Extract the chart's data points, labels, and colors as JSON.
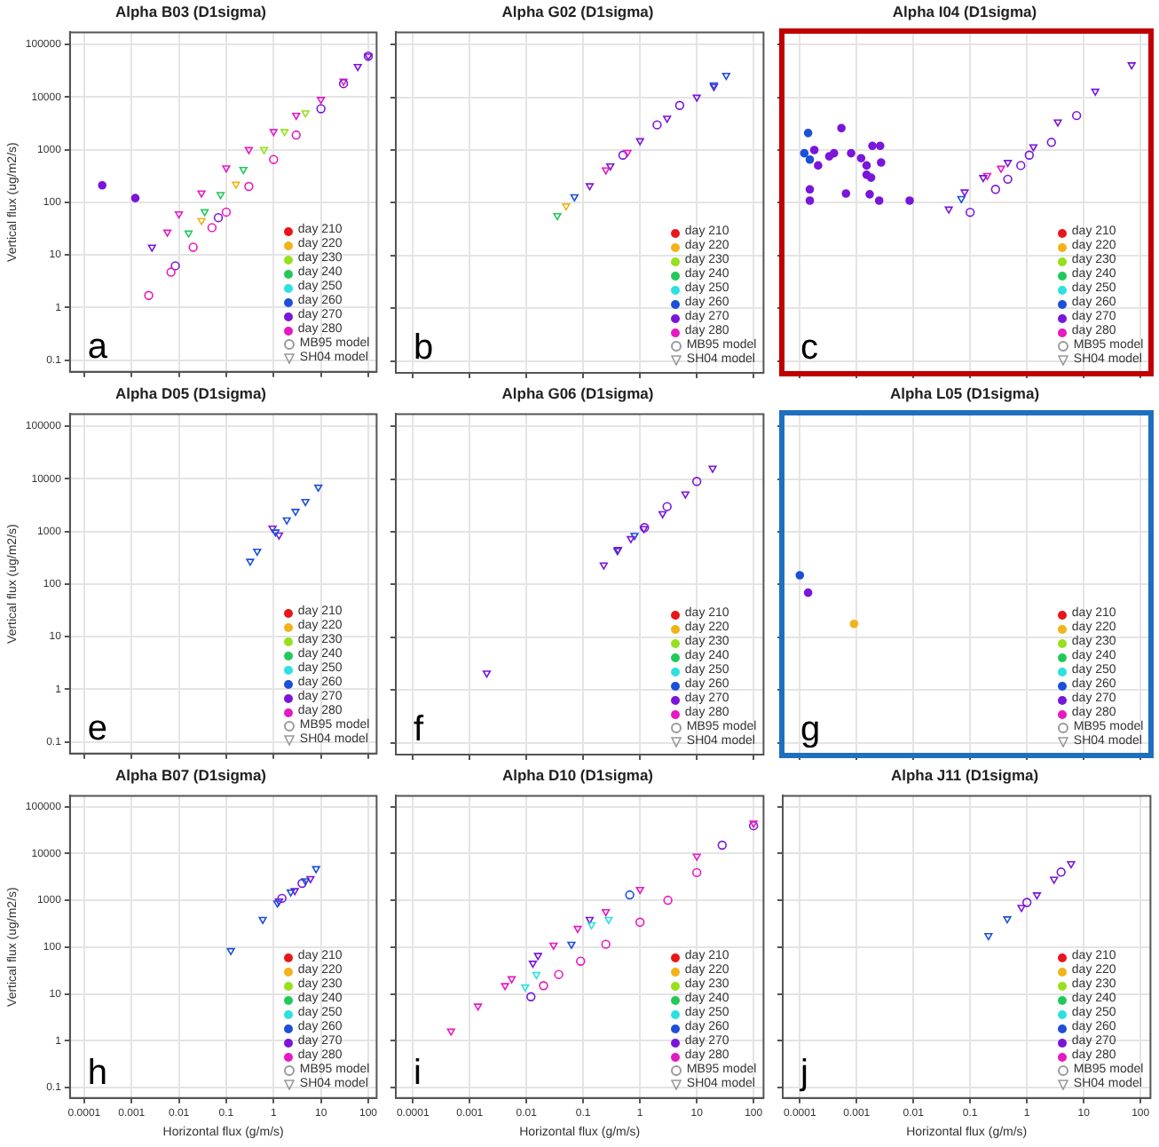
{
  "chart_data": [
    {
      "type": "scatter",
      "title": "Alpha B03 (D1sigma)",
      "ylabel": "Vertical flux (ug/m2/s)",
      "log": "xy",
      "grid": true,
      "legend": "bottom right",
      "tick_labels": "y",
      "xlim": [
        5e-05,
        150
      ],
      "ylim": [
        0.06,
        170000
      ],
      "xticks": [
        0.0001,
        0.001,
        0.01,
        0.1,
        1,
        10,
        100
      ],
      "yticks": [
        0.1,
        1,
        10,
        100,
        1000,
        10000,
        100000
      ],
      "annotations": [
        "a"
      ],
      "series": [
        {
          "name": "day 210",
          "color": "#e8161b"
        },
        {
          "name": "day 220",
          "color": "#f2b21a"
        },
        {
          "name": "day 230",
          "color": "#96e01e"
        },
        {
          "name": "day 240",
          "color": "#22c95a"
        },
        {
          "name": "day 250",
          "color": "#2fe0e0"
        },
        {
          "name": "day 260",
          "color": "#1d4fd8"
        },
        {
          "name": "day 270",
          "color": "#7a16d9",
          "x": [
            0.00024,
            0.0012
          ],
          "values": [
            210,
            120
          ]
        },
        {
          "name": "day 280",
          "color": "#e619c3"
        },
        {
          "color": "#e619c3",
          "marker": "circle",
          "x": [
            0.0023,
            0.0068,
            0.02,
            0.05,
            0.1,
            0.3,
            1,
            3
          ],
          "values": [
            1.7,
            4.7,
            14,
            33,
            65,
            200,
            650,
            1900
          ]
        },
        {
          "color": "#7a16d9",
          "marker": "circle",
          "x": [
            0.0084,
            0.068,
            10,
            30,
            100
          ],
          "values": [
            6.2,
            51,
            6000,
            18000,
            60000
          ]
        },
        {
          "color": "#e619c3",
          "marker": "triangle",
          "x": [
            0.0057,
            0.01,
            0.03,
            0.1,
            0.3,
            1,
            3,
            10,
            30
          ],
          "values": [
            27,
            60,
            150,
            450,
            1000,
            2200,
            4500,
            9000,
            20000
          ]
        },
        {
          "color": "#7a16d9",
          "marker": "triangle",
          "x": [
            0.0027,
            60,
            100
          ],
          "values": [
            14,
            38000,
            60000
          ]
        },
        {
          "color": "#22c95a",
          "marker": "triangle",
          "x": [
            0.016,
            0.035,
            0.076,
            0.23
          ],
          "values": [
            26,
            66,
            140,
            420
          ]
        },
        {
          "color": "#96e01e",
          "marker": "triangle",
          "x": [
            0.63,
            1.7,
            4.7
          ],
          "values": [
            1000,
            2200,
            5000
          ]
        },
        {
          "color": "#f2b21a",
          "marker": "triangle",
          "x": [
            0.03,
            0.16
          ],
          "values": [
            45,
            220
          ]
        },
        {
          "name": "MB95 model",
          "color": "#999999",
          "marker": "circle"
        },
        {
          "name": "SH04 model",
          "color": "#999999",
          "marker": "triangle"
        }
      ]
    },
    {
      "type": "scatter",
      "title": "Alpha G02 (D1sigma)",
      "log": "xy",
      "grid": true,
      "legend": "bottom right",
      "tick_labels": false,
      "xlim": [
        5e-05,
        150
      ],
      "ylim": [
        0.06,
        170000
      ],
      "xticks": [
        0.0001,
        0.001,
        0.01,
        0.1,
        1,
        10,
        100
      ],
      "yticks": [
        0.1,
        1,
        10,
        100,
        1000,
        10000,
        100000
      ],
      "annotations": [
        "b"
      ],
      "series": [
        {
          "name": "day 210",
          "color": "#e8161b"
        },
        {
          "name": "day 220",
          "color": "#f2b21a"
        },
        {
          "name": "day 230",
          "color": "#96e01e"
        },
        {
          "name": "day 240",
          "color": "#22c95a"
        },
        {
          "name": "day 250",
          "color": "#2fe0e0"
        },
        {
          "name": "day 260",
          "color": "#1d4fd8"
        },
        {
          "name": "day 270",
          "color": "#7a16d9"
        },
        {
          "name": "day 280",
          "color": "#e619c3"
        },
        {
          "color": "#e619c3",
          "marker": "triangle",
          "x": [
            0.25,
            0.6
          ],
          "values": [
            420,
            900
          ]
        },
        {
          "color": "#22c95a",
          "marker": "triangle",
          "x": [
            0.035
          ],
          "values": [
            57
          ]
        },
        {
          "color": "#f2b21a",
          "marker": "triangle",
          "x": [
            0.05
          ],
          "values": [
            87
          ]
        },
        {
          "color": "#1d4fd8",
          "marker": "triangle",
          "x": [
            0.07,
            20,
            33
          ],
          "values": [
            130,
            17000,
            26000
          ]
        },
        {
          "color": "#7a16d9",
          "marker": "triangle",
          "x": [
            0.13,
            0.3,
            1,
            3,
            10,
            20
          ],
          "values": [
            210,
            500,
            1500,
            4000,
            10000,
            16000
          ]
        },
        {
          "color": "#7a16d9",
          "marker": "circle",
          "x": [
            0.5,
            2,
            5
          ],
          "values": [
            800,
            3000,
            7000
          ]
        },
        {
          "name": "MB95 model",
          "color": "#999999",
          "marker": "circle"
        },
        {
          "name": "SH04 model",
          "color": "#999999",
          "marker": "triangle"
        }
      ]
    },
    {
      "type": "scatter",
      "title": "Alpha I04 (D1sigma)",
      "log": "xy",
      "grid": true,
      "legend": "bottom right",
      "tick_labels": false,
      "xlim": [
        5e-05,
        150
      ],
      "ylim": [
        0.06,
        170000
      ],
      "xticks": [
        0.0001,
        0.001,
        0.01,
        0.1,
        1,
        10,
        100
      ],
      "yticks": [
        0.1,
        1,
        10,
        100,
        1000,
        10000,
        100000
      ],
      "annotations": [
        "c"
      ],
      "series": [
        {
          "name": "day 210",
          "color": "#e8161b"
        },
        {
          "name": "day 220",
          "color": "#f2b21a"
        },
        {
          "name": "day 230",
          "color": "#96e01e"
        },
        {
          "name": "day 240",
          "color": "#22c95a"
        },
        {
          "name": "day 250",
          "color": "#2fe0e0"
        },
        {
          "name": "day 260",
          "color": "#1d4fd8",
          "x": [
            0.00014,
            0.00012,
            0.00015
          ],
          "values": [
            2100,
            870,
            660
          ]
        },
        {
          "name": "day 270",
          "color": "#7a16d9",
          "x": [
            0.00018,
            0.00021,
            0.00033,
            0.0004,
            0.00054,
            0.0008,
            0.0012,
            0.0015,
            0.0015,
            0.0018,
            0.0019,
            0.0026,
            0.0027,
            0.00015,
            0.00015,
            0.00065,
            0.0017,
            0.0025,
            0.0086
          ],
          "values": [
            1000,
            510,
            760,
            870,
            2600,
            870,
            700,
            510,
            340,
            300,
            1200,
            1200,
            580,
            180,
            110,
            150,
            145,
            110,
            110
          ]
        },
        {
          "name": "day 280",
          "color": "#e619c3"
        },
        {
          "color": "#7a16d9",
          "marker": "triangle",
          "x": [
            0.042,
            0.08,
            0.17,
            0.46,
            1.3,
            3.5,
            16,
            70
          ],
          "values": [
            76,
            160,
            300,
            580,
            1150,
            3400,
            13000,
            41000
          ]
        },
        {
          "color": "#1d4fd8",
          "marker": "triangle",
          "x": [
            0.07
          ],
          "values": [
            120
          ]
        },
        {
          "color": "#e619c3",
          "marker": "triangle",
          "x": [
            0.2,
            0.35
          ],
          "values": [
            330,
            450
          ]
        },
        {
          "color": "#7a16d9",
          "marker": "circle",
          "x": [
            0.1,
            0.28,
            0.46,
            0.78,
            1.1,
            2.7,
            7.5
          ],
          "values": [
            66,
            180,
            280,
            510,
            800,
            1400,
            4500
          ]
        },
        {
          "name": "MB95 model",
          "color": "#999999",
          "marker": "circle"
        },
        {
          "name": "SH04 model",
          "color": "#999999",
          "marker": "triangle"
        }
      ]
    },
    {
      "type": "scatter",
      "title": "Alpha D05 (D1sigma)",
      "ylabel": "Vertical flux (ug/m2/s)",
      "log": "xy",
      "grid": true,
      "legend": "bottom right",
      "tick_labels": "y",
      "xlim": [
        5e-05,
        150
      ],
      "ylim": [
        0.06,
        170000
      ],
      "xticks": [
        0.0001,
        0.001,
        0.01,
        0.1,
        1,
        10,
        100
      ],
      "yticks": [
        0.1,
        1,
        10,
        100,
        1000,
        10000,
        100000
      ],
      "annotations": [
        "e"
      ],
      "series": [
        {
          "name": "day 210",
          "color": "#e8161b"
        },
        {
          "name": "day 220",
          "color": "#f2b21a"
        },
        {
          "name": "day 230",
          "color": "#96e01e"
        },
        {
          "name": "day 240",
          "color": "#22c95a"
        },
        {
          "name": "day 250",
          "color": "#2fe0e0"
        },
        {
          "name": "day 260",
          "color": "#1d4fd8"
        },
        {
          "name": "day 270",
          "color": "#7a16d9"
        },
        {
          "name": "day 280",
          "color": "#e619c3"
        },
        {
          "color": "#1d4fd8",
          "marker": "triangle",
          "x": [
            0.32,
            0.45,
            1.1,
            1.9,
            2.9,
            4.7,
            8.8
          ],
          "values": [
            270,
            420,
            970,
            1650,
            2400,
            3700,
            6900
          ]
        },
        {
          "color": "#7a16d9",
          "marker": "triangle",
          "x": [
            0.95,
            1.3
          ],
          "values": [
            1150,
            850
          ]
        },
        {
          "name": "MB95 model",
          "color": "#999999",
          "marker": "circle"
        },
        {
          "name": "SH04 model",
          "color": "#999999",
          "marker": "triangle"
        }
      ]
    },
    {
      "type": "scatter",
      "title": "Alpha G06 (D1sigma)",
      "log": "xy",
      "grid": true,
      "legend": "bottom right",
      "tick_labels": false,
      "xlim": [
        5e-05,
        150
      ],
      "ylim": [
        0.06,
        170000
      ],
      "xticks": [
        0.0001,
        0.001,
        0.01,
        0.1,
        1,
        10,
        100
      ],
      "yticks": [
        0.1,
        1,
        10,
        100,
        1000,
        10000,
        100000
      ],
      "annotations": [
        "f"
      ],
      "series": [
        {
          "name": "day 210",
          "color": "#e8161b"
        },
        {
          "name": "day 220",
          "color": "#f2b21a"
        },
        {
          "name": "day 230",
          "color": "#96e01e"
        },
        {
          "name": "day 240",
          "color": "#22c95a"
        },
        {
          "name": "day 250",
          "color": "#2fe0e0"
        },
        {
          "name": "day 260",
          "color": "#1d4fd8"
        },
        {
          "name": "day 270",
          "color": "#7a16d9"
        },
        {
          "name": "day 280",
          "color": "#e619c3"
        },
        {
          "color": "#7a16d9",
          "marker": "triangle",
          "x": [
            0.002,
            0.23,
            0.41,
            0.69,
            1.17,
            2.5,
            6.3,
            19
          ],
          "values": [
            2.1,
            235,
            460,
            740,
            1150,
            2200,
            5200,
            16000
          ]
        },
        {
          "color": "#1d4fd8",
          "marker": "triangle",
          "x": [
            0.4,
            0.8
          ],
          "values": [
            440,
            850
          ]
        },
        {
          "color": "#7a16d9",
          "marker": "circle",
          "x": [
            1.2,
            3,
            10
          ],
          "values": [
            1200,
            3000,
            9000
          ]
        },
        {
          "name": "MB95 model",
          "color": "#999999",
          "marker": "circle"
        },
        {
          "name": "SH04 model",
          "color": "#999999",
          "marker": "triangle"
        }
      ]
    },
    {
      "type": "scatter",
      "title": "Alpha L05 (D1sigma)",
      "log": "xy",
      "grid": true,
      "legend": "bottom right",
      "tick_labels": false,
      "xlim": [
        5e-05,
        150
      ],
      "ylim": [
        0.06,
        170000
      ],
      "xticks": [
        0.0001,
        0.001,
        0.01,
        0.1,
        1,
        10,
        100
      ],
      "yticks": [
        0.1,
        1,
        10,
        100,
        1000,
        10000,
        100000
      ],
      "annotations": [
        "g"
      ],
      "series": [
        {
          "name": "day 210",
          "color": "#e8161b"
        },
        {
          "name": "day 220",
          "color": "#f2b21a",
          "x": [
            0.0009
          ],
          "values": [
            18
          ]
        },
        {
          "name": "day 230",
          "color": "#96e01e"
        },
        {
          "name": "day 240",
          "color": "#22c95a"
        },
        {
          "name": "day 250",
          "color": "#2fe0e0"
        },
        {
          "name": "day 260",
          "color": "#1d4fd8",
          "x": [
            0.0001
          ],
          "values": [
            150
          ]
        },
        {
          "name": "day 270",
          "color": "#7a16d9",
          "x": [
            0.00014
          ],
          "values": [
            70
          ]
        },
        {
          "name": "day 280",
          "color": "#e619c3"
        },
        {
          "name": "MB95 model",
          "color": "#999999",
          "marker": "circle"
        },
        {
          "name": "SH04 model",
          "color": "#999999",
          "marker": "triangle"
        }
      ]
    },
    {
      "type": "scatter",
      "title": "Alpha B07 (D1sigma)",
      "xlabel": "Horizontal flux (g/m/s)",
      "ylabel": "Vertical flux (ug/m2/s)",
      "log": "xy",
      "grid": true,
      "legend": "bottom right",
      "xlim": [
        5e-05,
        150
      ],
      "ylim": [
        0.06,
        170000
      ],
      "xticks": [
        0.0001,
        0.001,
        0.01,
        0.1,
        1,
        10,
        100
      ],
      "yticks": [
        0.1,
        1,
        10,
        100,
        1000,
        10000,
        100000
      ],
      "annotations": [
        "h"
      ],
      "series": [
        {
          "name": "day 210",
          "color": "#e8161b"
        },
        {
          "name": "day 220",
          "color": "#f2b21a"
        },
        {
          "name": "day 230",
          "color": "#96e01e"
        },
        {
          "name": "day 240",
          "color": "#22c95a"
        },
        {
          "name": "day 250",
          "color": "#2fe0e0"
        },
        {
          "name": "day 260",
          "color": "#1d4fd8"
        },
        {
          "name": "day 270",
          "color": "#7a16d9"
        },
        {
          "name": "day 280",
          "color": "#e619c3"
        },
        {
          "color": "#1d4fd8",
          "marker": "triangle",
          "x": [
            0.125,
            0.59,
            1.2,
            2.3,
            4.7,
            7.9
          ],
          "values": [
            84,
            390,
            870,
            1500,
            2600,
            4700
          ]
        },
        {
          "color": "#7a16d9",
          "marker": "triangle",
          "x": [
            1.3,
            2.8,
            6
          ],
          "values": [
            960,
            1600,
            2900
          ]
        },
        {
          "color": "#7a16d9",
          "marker": "circle",
          "x": [
            1.5,
            4
          ],
          "values": [
            1100,
            2300
          ]
        },
        {
          "name": "MB95 model",
          "color": "#999999",
          "marker": "circle"
        },
        {
          "name": "SH04 model",
          "color": "#999999",
          "marker": "triangle"
        }
      ]
    },
    {
      "type": "scatter",
      "title": "Alpha D10 (D1sigma)",
      "xlabel": "Horizontal flux (g/m/s)",
      "log": "xy",
      "grid": true,
      "legend": "bottom right",
      "tick_labels": "x",
      "xlim": [
        5e-05,
        150
      ],
      "ylim": [
        0.06,
        170000
      ],
      "xticks": [
        0.0001,
        0.001,
        0.01,
        0.1,
        1,
        10,
        100
      ],
      "yticks": [
        0.1,
        1,
        10,
        100,
        1000,
        10000,
        100000
      ],
      "annotations": [
        "i"
      ],
      "series": [
        {
          "name": "day 210",
          "color": "#e8161b"
        },
        {
          "name": "day 220",
          "color": "#f2b21a"
        },
        {
          "name": "day 230",
          "color": "#96e01e"
        },
        {
          "name": "day 240",
          "color": "#22c95a"
        },
        {
          "name": "day 250",
          "color": "#2fe0e0"
        },
        {
          "name": "day 260",
          "color": "#1d4fd8"
        },
        {
          "name": "day 270",
          "color": "#7a16d9"
        },
        {
          "name": "day 280",
          "color": "#e619c3"
        },
        {
          "color": "#e619c3",
          "marker": "triangle",
          "x": [
            0.00047,
            0.0014,
            0.0042,
            0.0055,
            0.03,
            0.08,
            0.25,
            1,
            10,
            100
          ],
          "values": [
            1.6,
            5.5,
            15,
            21,
            110,
            250,
            570,
            1700,
            8700,
            44000
          ]
        },
        {
          "color": "#2fe0e0",
          "marker": "triangle",
          "x": [
            0.0095,
            0.015,
            0.14,
            0.28
          ],
          "values": [
            14,
            26,
            300,
            390
          ]
        },
        {
          "color": "#1d4fd8",
          "marker": "triangle",
          "x": [
            0.062
          ],
          "values": [
            115
          ]
        },
        {
          "color": "#7a16d9",
          "marker": "triangle",
          "x": [
            0.013,
            0.016,
            0.13
          ],
          "values": [
            45,
            66,
            390
          ]
        },
        {
          "color": "#e619c3",
          "marker": "circle",
          "x": [
            0.02,
            0.037,
            0.09,
            0.25,
            1,
            3.1,
            10
          ],
          "values": [
            15,
            26,
            50,
            115,
            340,
            1000,
            3900
          ]
        },
        {
          "color": "#7a16d9",
          "marker": "circle",
          "x": [
            0.012,
            28,
            100
          ],
          "values": [
            8.7,
            15000,
            39000
          ]
        },
        {
          "color": "#1d4fd8",
          "marker": "circle",
          "x": [
            0.66
          ],
          "values": [
            1300
          ]
        },
        {
          "name": "MB95 model",
          "color": "#999999",
          "marker": "circle"
        },
        {
          "name": "SH04 model",
          "color": "#999999",
          "marker": "triangle"
        }
      ]
    },
    {
      "type": "scatter",
      "title": "Alpha J11 (D1sigma)",
      "xlabel": "Horizontal flux (g/m/s)",
      "log": "xy",
      "grid": true,
      "legend": "bottom right",
      "tick_labels": "x",
      "xlim": [
        5e-05,
        150
      ],
      "ylim": [
        0.06,
        170000
      ],
      "xticks": [
        0.0001,
        0.001,
        0.01,
        0.1,
        1,
        10,
        100
      ],
      "yticks": [
        0.1,
        1,
        10,
        100,
        1000,
        10000,
        100000
      ],
      "annotations": [
        "j"
      ],
      "series": [
        {
          "name": "day 210",
          "color": "#e8161b"
        },
        {
          "name": "day 220",
          "color": "#f2b21a"
        },
        {
          "name": "day 230",
          "color": "#96e01e"
        },
        {
          "name": "day 240",
          "color": "#22c95a"
        },
        {
          "name": "day 250",
          "color": "#2fe0e0"
        },
        {
          "name": "day 260",
          "color": "#1d4fd8"
        },
        {
          "name": "day 270",
          "color": "#7a16d9"
        },
        {
          "name": "day 280",
          "color": "#e619c3"
        },
        {
          "color": "#1d4fd8",
          "marker": "triangle",
          "x": [
            0.21,
            0.45
          ],
          "values": [
            175,
            400
          ]
        },
        {
          "color": "#7a16d9",
          "marker": "triangle",
          "x": [
            0.8,
            1.5,
            3,
            6
          ],
          "values": [
            700,
            1300,
            2800,
            6000
          ]
        },
        {
          "color": "#7a16d9",
          "marker": "circle",
          "x": [
            1,
            4
          ],
          "values": [
            900,
            4000
          ]
        },
        {
          "name": "MB95 model",
          "color": "#999999",
          "marker": "circle"
        },
        {
          "name": "SH04 model",
          "color": "#999999",
          "marker": "triangle"
        }
      ]
    }
  ]
}
